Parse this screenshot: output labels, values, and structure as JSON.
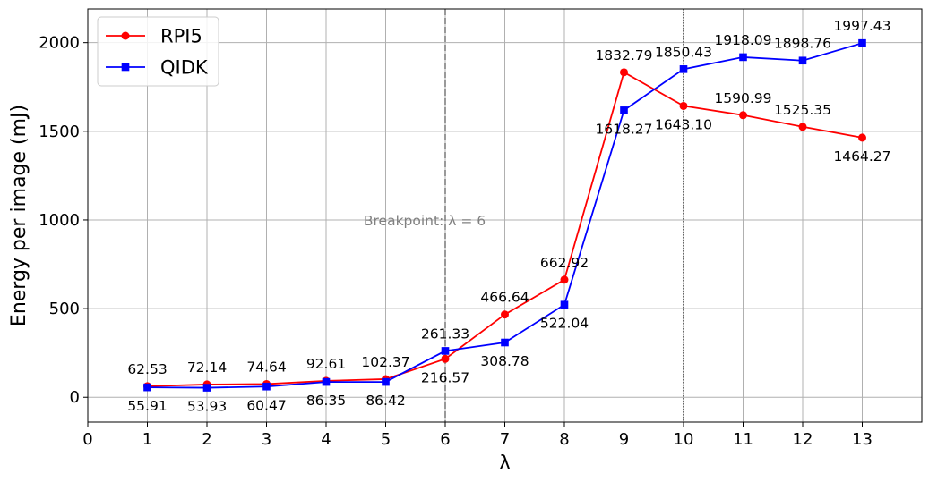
{
  "chart_data": {
    "type": "line",
    "xlabel": "λ",
    "ylabel": "Energy per image (mJ)",
    "x": [
      1,
      2,
      3,
      4,
      5,
      6,
      7,
      8,
      9,
      10,
      11,
      12,
      13
    ],
    "xlim": [
      0,
      14
    ],
    "ylim": [
      -140,
      2190
    ],
    "xticks": [
      0,
      1,
      2,
      3,
      4,
      5,
      6,
      7,
      8,
      9,
      10,
      11,
      12,
      13
    ],
    "yticks": [
      0,
      500,
      1000,
      1500,
      2000
    ],
    "highlighted_xtick": 10,
    "highlight_color": "#ff7f0e",
    "grid": true,
    "legend_position": "top-left",
    "series": [
      {
        "name": "RPI5",
        "color": "#ff0000",
        "marker": "circle",
        "values": [
          62.53,
          72.14,
          74.64,
          92.61,
          102.37,
          216.57,
          466.64,
          662.92,
          1832.79,
          1643.1,
          1590.99,
          1525.35,
          1464.27
        ],
        "labels": [
          "62.53",
          "72.14",
          "74.64",
          "92.61",
          "102.37",
          "216.57",
          "466.64",
          "662.92",
          "1832.79",
          "1643.10",
          "1590.99",
          "1525.35",
          "1464.27"
        ],
        "label_side": [
          "above",
          "above",
          "above",
          "above",
          "above",
          "below",
          "above",
          "above",
          "above",
          "below",
          "above",
          "above",
          "below"
        ]
      },
      {
        "name": "QIDK",
        "color": "#0000ff",
        "marker": "square",
        "values": [
          55.91,
          53.93,
          60.47,
          86.35,
          86.42,
          261.33,
          308.78,
          522.04,
          1618.27,
          1850.43,
          1918.09,
          1898.76,
          1997.43
        ],
        "labels": [
          "55.91",
          "53.93",
          "60.47",
          "86.35",
          "86.42",
          "261.33",
          "308.78",
          "522.04",
          "1618.27",
          "1850.43",
          "1918.09",
          "1898.76",
          "1997.43"
        ],
        "label_side": [
          "below",
          "below",
          "below",
          "below",
          "below",
          "above",
          "below",
          "below",
          "below",
          "above",
          "above",
          "above",
          "above"
        ]
      }
    ],
    "vlines": [
      {
        "x": 6,
        "style": "dashed",
        "color": "#808080"
      },
      {
        "x": 10,
        "style": "dotted",
        "color": "#000000"
      }
    ],
    "annotations": [
      {
        "text": "Breakpoint: λ = 6",
        "x": 6,
        "y": 1000,
        "color": "#808080"
      }
    ]
  }
}
